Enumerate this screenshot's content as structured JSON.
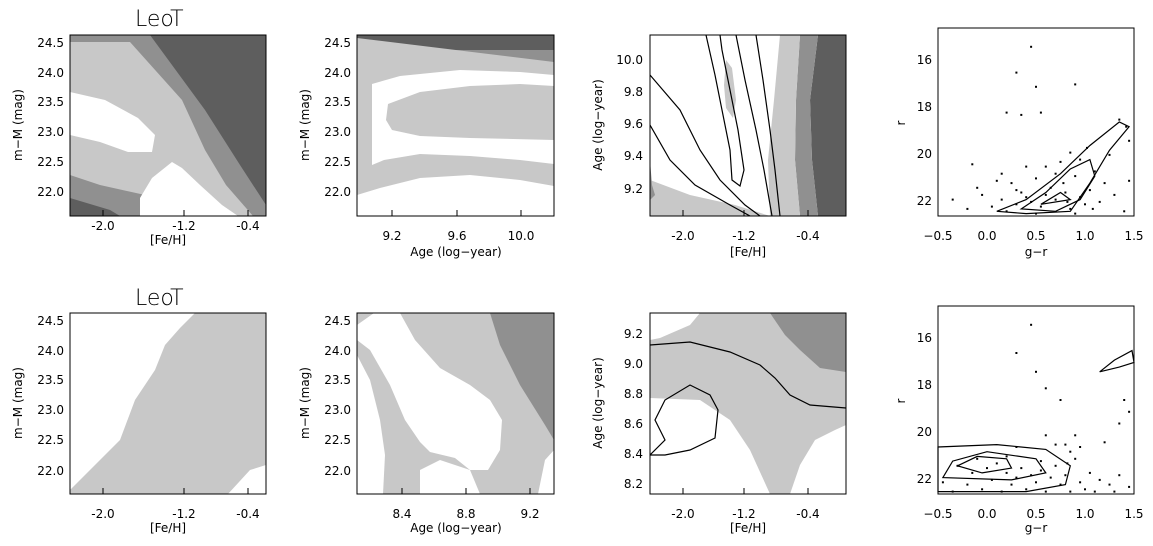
{
  "figure": {
    "rows": [
      "LeoT",
      "LeoT"
    ]
  },
  "colors": {
    "light": "#c8c8c8",
    "mid": "#909090",
    "dark": "#5e5e5e",
    "line": "#000000"
  },
  "chart_data": [
    {
      "type": "heatmap",
      "title": "LeoT",
      "xlabel": "[Fe/H]",
      "ylabel": "m−M (mag)",
      "xlim": [
        -2.3,
        -0.1
      ],
      "ylim": [
        21.6,
        24.6
      ],
      "xticks": [
        "-2.0",
        "-1.2",
        "-0.4"
      ],
      "yticks": [
        "22.0",
        "22.5",
        "23.0",
        "23.5",
        "24.0",
        "24.5"
      ]
    },
    {
      "type": "heatmap",
      "title": "",
      "xlabel": "Age (log−year)",
      "ylabel": "m−M (mag)",
      "xlim": [
        9.0,
        10.2
      ],
      "ylim": [
        21.6,
        24.6
      ],
      "xticks": [
        "9.2",
        "9.6",
        "10.0"
      ],
      "yticks": [
        "22.0",
        "22.5",
        "23.0",
        "23.5",
        "24.0",
        "24.5"
      ]
    },
    {
      "type": "heatmap",
      "title": "",
      "xlabel": "[Fe/H]",
      "ylabel": "Age (log−year)",
      "xlim": [
        -2.3,
        -0.1
      ],
      "ylim": [
        9.05,
        10.1
      ],
      "xticks": [
        "-2.0",
        "-1.2",
        "-0.4"
      ],
      "yticks": [
        "9.2",
        "9.4",
        "9.6",
        "9.8",
        "10.0"
      ]
    },
    {
      "type": "scatter",
      "title": "",
      "xlabel": "g−r",
      "ylabel": "r",
      "xlim": [
        -0.5,
        1.5
      ],
      "ylim": [
        23.0,
        15.0
      ],
      "xticks": [
        "−0.5",
        "0.0",
        "0.5",
        "1.0",
        "1.5"
      ],
      "yticks": [
        "16",
        "18",
        "20",
        "22"
      ],
      "points": [
        [
          0.45,
          15.8
        ],
        [
          0.3,
          16.9
        ],
        [
          0.5,
          17.5
        ],
        [
          0.9,
          17.4
        ],
        [
          0.2,
          18.6
        ],
        [
          0.35,
          18.7
        ],
        [
          0.55,
          18.6
        ],
        [
          1.35,
          18.9
        ],
        [
          1.42,
          19.2
        ],
        [
          1.45,
          19.8
        ],
        [
          -0.15,
          20.8
        ],
        [
          0.4,
          20.9
        ],
        [
          0.15,
          21.2
        ],
        [
          0.1,
          21.5
        ],
        [
          -0.1,
          21.8
        ],
        [
          0.25,
          21.6
        ],
        [
          0.5,
          21.4
        ],
        [
          0.7,
          21.2
        ],
        [
          0.9,
          21.3
        ],
        [
          1.1,
          21.1
        ],
        [
          1.2,
          21.6
        ],
        [
          0.35,
          22.0
        ],
        [
          0.6,
          22.1
        ],
        [
          0.8,
          22.0
        ],
        [
          0.95,
          22.2
        ],
        [
          1.05,
          21.9
        ],
        [
          1.3,
          22.1
        ],
        [
          1.45,
          21.5
        ],
        [
          0.3,
          22.5
        ],
        [
          0.45,
          22.4
        ],
        [
          0.55,
          22.6
        ],
        [
          0.7,
          22.3
        ],
        [
          0.85,
          22.7
        ],
        [
          1.0,
          22.5
        ],
        [
          1.15,
          22.4
        ],
        [
          -0.35,
          22.3
        ],
        [
          -0.2,
          22.7
        ],
        [
          0.05,
          22.6
        ],
        [
          0.2,
          22.8
        ],
        [
          0.65,
          21.8
        ],
        [
          0.75,
          20.7
        ],
        [
          0.85,
          20.3
        ],
        [
          0.95,
          20.6
        ],
        [
          1.02,
          20.1
        ],
        [
          0.6,
          20.9
        ],
        [
          1.25,
          20.4
        ],
        [
          0.4,
          22.2
        ],
        [
          0.5,
          22.9
        ],
        [
          0.9,
          22.9
        ],
        [
          1.4,
          22.8
        ],
        [
          -0.05,
          22.1
        ],
        [
          0.15,
          22.3
        ],
        [
          0.3,
          21.9
        ],
        [
          0.78,
          21.6
        ],
        [
          0.82,
          22.4
        ],
        [
          1.08,
          22.7
        ]
      ],
      "contours": [
        [
          [
            0.1,
            22.8
          ],
          [
            0.4,
            22.3
          ],
          [
            0.75,
            21.2
          ],
          [
            1.05,
            20.0
          ],
          [
            1.35,
            19.0
          ],
          [
            1.45,
            19.2
          ],
          [
            1.25,
            20.2
          ],
          [
            1.05,
            21.6
          ],
          [
            0.85,
            22.8
          ],
          [
            0.4,
            22.9
          ],
          [
            0.1,
            22.8
          ]
        ],
        [
          [
            0.35,
            22.7
          ],
          [
            0.6,
            22.0
          ],
          [
            0.85,
            21.0
          ],
          [
            1.05,
            20.6
          ],
          [
            1.1,
            21.3
          ],
          [
            0.95,
            22.3
          ],
          [
            0.7,
            22.8
          ],
          [
            0.35,
            22.7
          ]
        ],
        [
          [
            0.55,
            22.5
          ],
          [
            0.75,
            22.0
          ],
          [
            0.85,
            22.3
          ],
          [
            0.55,
            22.5
          ]
        ]
      ]
    },
    {
      "type": "heatmap",
      "title": "LeoT",
      "xlabel": "[Fe/H]",
      "ylabel": "m−M (mag)",
      "xlim": [
        -2.3,
        -0.1
      ],
      "ylim": [
        21.6,
        24.6
      ],
      "xticks": [
        "-2.0",
        "-1.2",
        "-0.4"
      ],
      "yticks": [
        "22.0",
        "22.5",
        "23.0",
        "23.5",
        "24.0",
        "24.5"
      ]
    },
    {
      "type": "heatmap",
      "title": "",
      "xlabel": "Age (log−year)",
      "ylabel": "m−M (mag)",
      "xlim": [
        8.1,
        9.4
      ],
      "ylim": [
        21.6,
        24.6
      ],
      "xticks": [
        "8.4",
        "8.8",
        "9.2"
      ],
      "yticks": [
        "22.0",
        "22.5",
        "23.0",
        "23.5",
        "24.0",
        "24.5"
      ]
    },
    {
      "type": "heatmap",
      "title": "",
      "xlabel": "[Fe/H]",
      "ylabel": "Age (log−year)",
      "xlim": [
        -2.3,
        -0.1
      ],
      "ylim": [
        8.1,
        9.35
      ],
      "xticks": [
        "-2.0",
        "-1.2",
        "-0.4"
      ],
      "yticks": [
        "8.2",
        "8.4",
        "8.6",
        "8.8",
        "9.0",
        "9.2"
      ]
    },
    {
      "type": "scatter",
      "title": "",
      "xlabel": "g−r",
      "ylabel": "r",
      "xlim": [
        -0.5,
        1.5
      ],
      "ylim": [
        23.0,
        15.0
      ],
      "xticks": [
        "−0.5",
        "0.0",
        "0.5",
        "1.0",
        "1.5"
      ],
      "yticks": [
        "16",
        "18",
        "20",
        "22"
      ],
      "points": [
        [
          0.45,
          15.8
        ],
        [
          0.3,
          17.0
        ],
        [
          0.5,
          17.8
        ],
        [
          0.6,
          18.5
        ],
        [
          0.75,
          19.0
        ],
        [
          1.4,
          19.0
        ],
        [
          1.45,
          19.5
        ],
        [
          1.35,
          20.0
        ],
        [
          1.2,
          20.8
        ],
        [
          0.6,
          20.5
        ],
        [
          0.8,
          20.9
        ],
        [
          0.85,
          21.2
        ],
        [
          0.9,
          21.5
        ],
        [
          0.3,
          21.0
        ],
        [
          0.1,
          21.7
        ],
        [
          -0.1,
          21.5
        ],
        [
          -0.3,
          21.8
        ],
        [
          0.2,
          22.1
        ],
        [
          0.35,
          21.9
        ],
        [
          0.45,
          22.2
        ],
        [
          0.55,
          22.0
        ],
        [
          0.65,
          22.3
        ],
        [
          0.7,
          21.8
        ],
        [
          0.8,
          22.2
        ],
        [
          0.95,
          22.5
        ],
        [
          1.05,
          22.1
        ],
        [
          1.15,
          22.4
        ],
        [
          1.25,
          22.6
        ],
        [
          1.35,
          22.2
        ],
        [
          1.45,
          22.7
        ],
        [
          -0.45,
          22.5
        ],
        [
          -0.35,
          22.9
        ],
        [
          -0.2,
          22.6
        ],
        [
          -0.05,
          22.8
        ],
        [
          0.05,
          22.4
        ],
        [
          0.15,
          22.9
        ],
        [
          0.25,
          22.6
        ],
        [
          0.4,
          22.8
        ],
        [
          0.5,
          22.5
        ],
        [
          0.6,
          22.9
        ],
        [
          0.75,
          22.6
        ],
        [
          0.85,
          22.9
        ],
        [
          1.0,
          22.8
        ],
        [
          1.1,
          22.9
        ],
        [
          1.3,
          22.9
        ],
        [
          0.95,
          21.0
        ],
        [
          0.9,
          20.5
        ],
        [
          0.82,
          21.7
        ],
        [
          0.7,
          20.9
        ],
        [
          0.55,
          21.6
        ],
        [
          0.3,
          22.3
        ],
        [
          -0.15,
          22.1
        ],
        [
          0.0,
          21.9
        ],
        [
          0.2,
          21.4
        ]
      ],
      "contours": [
        [
          [
            -0.5,
            22.9
          ],
          [
            -0.5,
            21.0
          ],
          [
            0.1,
            20.9
          ],
          [
            0.6,
            21.1
          ],
          [
            0.85,
            21.8
          ],
          [
            0.8,
            22.6
          ],
          [
            0.4,
            22.9
          ],
          [
            -0.5,
            22.9
          ]
        ],
        [
          [
            -0.45,
            22.3
          ],
          [
            -0.35,
            21.6
          ],
          [
            0.0,
            21.2
          ],
          [
            0.5,
            21.5
          ],
          [
            0.6,
            22.1
          ],
          [
            0.25,
            22.4
          ],
          [
            -0.45,
            22.3
          ]
        ],
        [
          [
            -0.3,
            21.8
          ],
          [
            -0.1,
            21.4
          ],
          [
            0.2,
            21.5
          ],
          [
            0.25,
            21.9
          ],
          [
            -0.05,
            22.1
          ],
          [
            -0.3,
            21.8
          ]
        ],
        [
          [
            1.15,
            17.8
          ],
          [
            1.3,
            17.3
          ],
          [
            1.48,
            16.9
          ],
          [
            1.5,
            17.4
          ],
          [
            1.35,
            17.6
          ],
          [
            1.15,
            17.8
          ]
        ]
      ]
    }
  ]
}
